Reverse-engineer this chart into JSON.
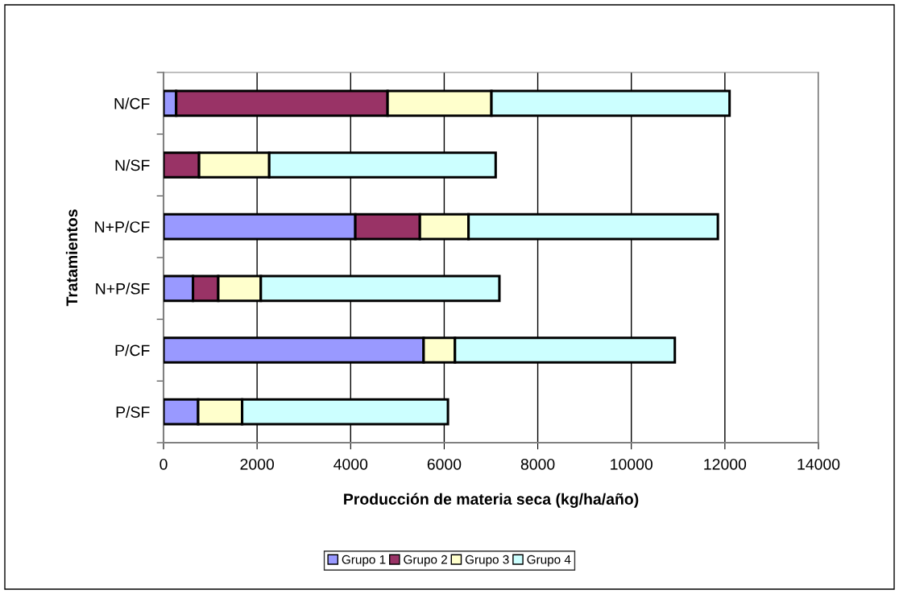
{
  "chart_data": {
    "type": "bar",
    "orientation": "horizontal",
    "stacked": true,
    "xlabel": "Producción de materia seca (kg/ha/año)",
    "ylabel": "Tratamientos",
    "categories": [
      "N/CF",
      "N/SF",
      "N+P/CF",
      "N+P/SF",
      "P/CF",
      "P/SF"
    ],
    "series": [
      {
        "name": "Grupo 1",
        "color": "#9999ff",
        "values": [
          270,
          null,
          4100,
          630,
          5560,
          740
        ]
      },
      {
        "name": "Grupo 2",
        "color": "#993366",
        "values": [
          4520,
          760,
          1380,
          540,
          null,
          null
        ]
      },
      {
        "name": "Grupo 3",
        "color": "#ffffcc",
        "values": [
          2220,
          1500,
          1040,
          910,
          670,
          940
        ]
      },
      {
        "name": "Grupo 4",
        "color": "#ccffff",
        "values": [
          5090,
          4840,
          5330,
          5100,
          4700,
          4400
        ]
      }
    ],
    "xlim": [
      0,
      14000
    ],
    "xticks": [
      0,
      2000,
      4000,
      6000,
      8000,
      10000,
      12000,
      14000
    ],
    "grid": "x",
    "legend": "bottom"
  }
}
